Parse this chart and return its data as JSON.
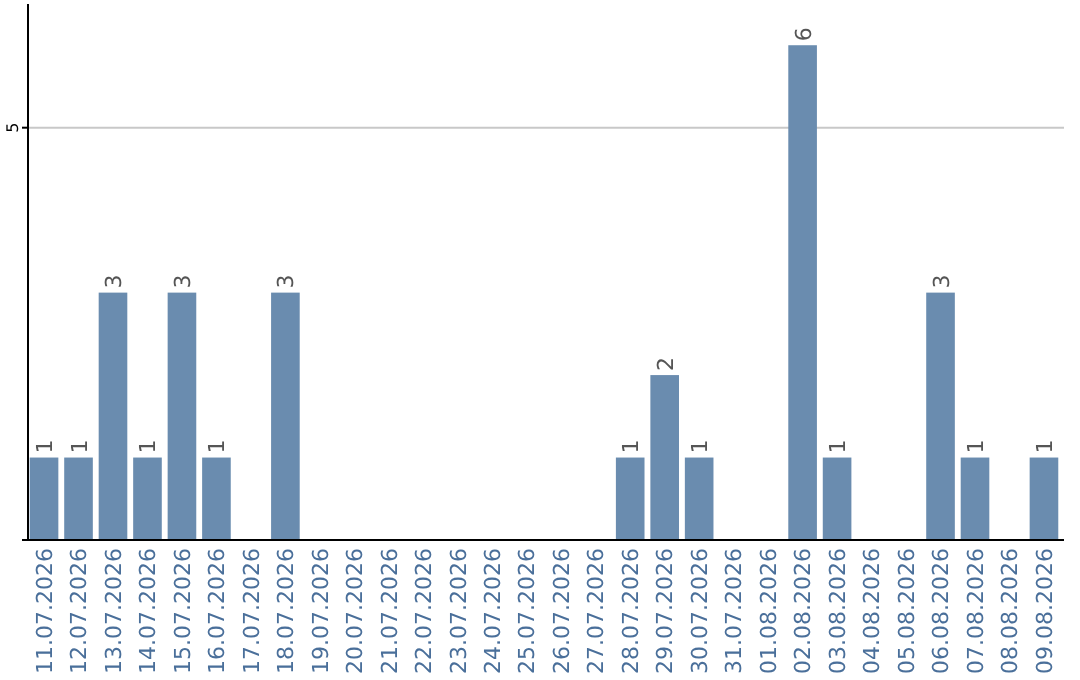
{
  "chart_data": {
    "type": "bar",
    "categories": [
      "11.07.2026",
      "12.07.2026",
      "13.07.2026",
      "14.07.2026",
      "15.07.2026",
      "16.07.2026",
      "17.07.2026",
      "18.07.2026",
      "19.07.2026",
      "20.07.2026",
      "21.07.2026",
      "22.07.2026",
      "23.07.2026",
      "24.07.2026",
      "25.07.2026",
      "26.07.2026",
      "27.07.2026",
      "28.07.2026",
      "29.07.2026",
      "30.07.2026",
      "31.07.2026",
      "01.08.2026",
      "02.08.2026",
      "03.08.2026",
      "04.08.2026",
      "05.08.2026",
      "06.08.2026",
      "07.08.2026",
      "08.08.2026",
      "09.08.2026"
    ],
    "values": [
      1,
      1,
      3,
      1,
      3,
      1,
      0,
      3,
      0,
      0,
      0,
      0,
      0,
      0,
      0,
      0,
      0,
      1,
      2,
      1,
      0,
      0,
      6,
      1,
      0,
      0,
      3,
      1,
      0,
      1
    ],
    "value_labels": [
      "1",
      "1",
      "3",
      "1",
      "3",
      "1",
      null,
      "3",
      null,
      null,
      null,
      null,
      null,
      null,
      null,
      null,
      null,
      "1",
      "2",
      "1",
      null,
      null,
      "6",
      "1",
      null,
      null,
      "3",
      "1",
      null,
      "1"
    ],
    "color": "#6a8caf",
    "ylim": [
      0,
      6.5
    ],
    "yticks": [
      {
        "value": 0,
        "label": null
      },
      5
    ],
    "grid": "y"
  }
}
